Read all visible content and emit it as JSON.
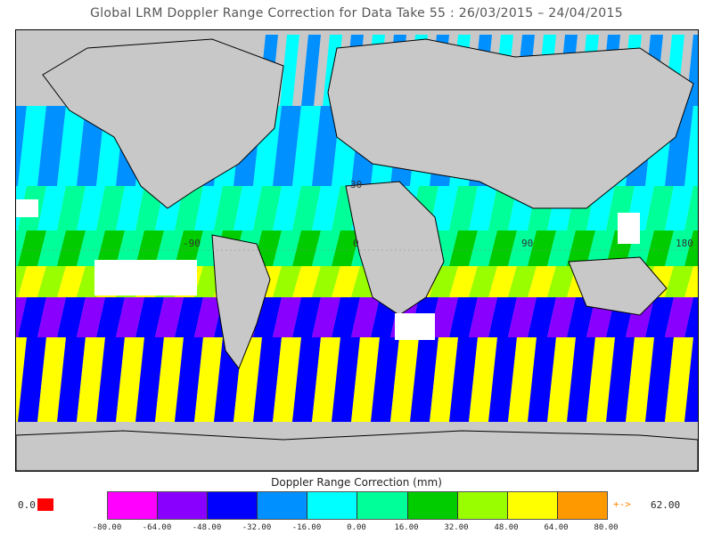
{
  "title": "Global LRM Doppler Range Correction for Data Take 55 : 26/03/2015 – 24/04/2015",
  "map": {
    "lon_labels": [
      "-90",
      "0",
      "90",
      "180"
    ],
    "lat_labels": [
      "30"
    ],
    "land_color": "#c8c8c8",
    "nodata_color": "#ffffff"
  },
  "colorbar": {
    "title": "Doppler Range Correction (mm)",
    "ticks": [
      "-80.00",
      "-64.00",
      "-48.00",
      "-32.00",
      "-16.00",
      "0.00",
      "16.00",
      "32.00",
      "48.00",
      "64.00",
      "80.00"
    ],
    "colors": [
      "#ff00ff",
      "#8a00ff",
      "#0000ff",
      "#0090ff",
      "#00ffff",
      "#00ff99",
      "#00cc00",
      "#99ff00",
      "#ffff00",
      "#ff9900"
    ],
    "under_value": "0.0",
    "under_color": "#ff0000",
    "over_arrow": "+->",
    "over_value": "62.00"
  }
}
